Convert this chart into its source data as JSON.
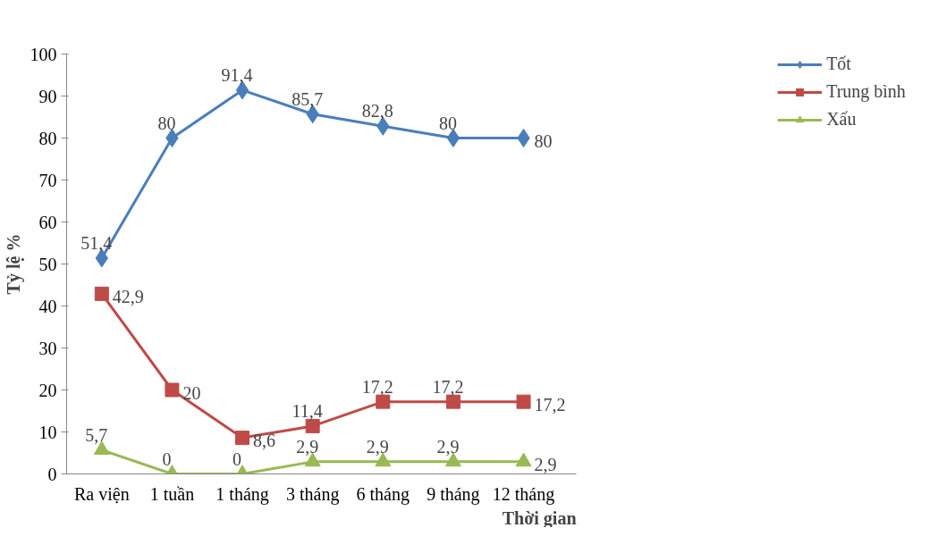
{
  "chart_data": {
    "type": "line",
    "ylabel": "Tỷ lệ %",
    "xlabel": "Thời gian",
    "categories": [
      "Ra viện",
      "1 tuần",
      "1 tháng",
      "3 tháng",
      "6 tháng",
      "9 tháng",
      "12 tháng"
    ],
    "series": [
      {
        "name": "Tốt",
        "color": "#4a7ebb",
        "marker": "diamond",
        "values": [
          51.4,
          80,
          91.4,
          85.7,
          82.8,
          80,
          80
        ],
        "value_labels": [
          "51,4",
          "80",
          "91,4",
          "85,7",
          "82,8",
          "80",
          "80"
        ]
      },
      {
        "name": "Trung bình",
        "color": "#be4b48",
        "marker": "square",
        "values": [
          42.9,
          20,
          8.6,
          11.4,
          17.2,
          17.2,
          17.2
        ],
        "value_labels": [
          "42,9",
          "20",
          "8,6",
          "11,4",
          "17,2",
          "17,2",
          "17,2"
        ]
      },
      {
        "name": "Xấu",
        "color": "#98b954",
        "marker": "triangle",
        "values": [
          5.7,
          0,
          0,
          2.9,
          2.9,
          2.9,
          2.9
        ],
        "value_labels": [
          "5,7",
          "0",
          "0",
          "2,9",
          "2,9",
          "2,9",
          "2,9"
        ]
      }
    ],
    "ylim": [
      0,
      100
    ],
    "yticks": [
      0,
      10,
      20,
      30,
      40,
      50,
      60,
      70,
      80,
      90,
      100
    ],
    "grid": false,
    "legend": "top right",
    "line_style": "solid"
  }
}
